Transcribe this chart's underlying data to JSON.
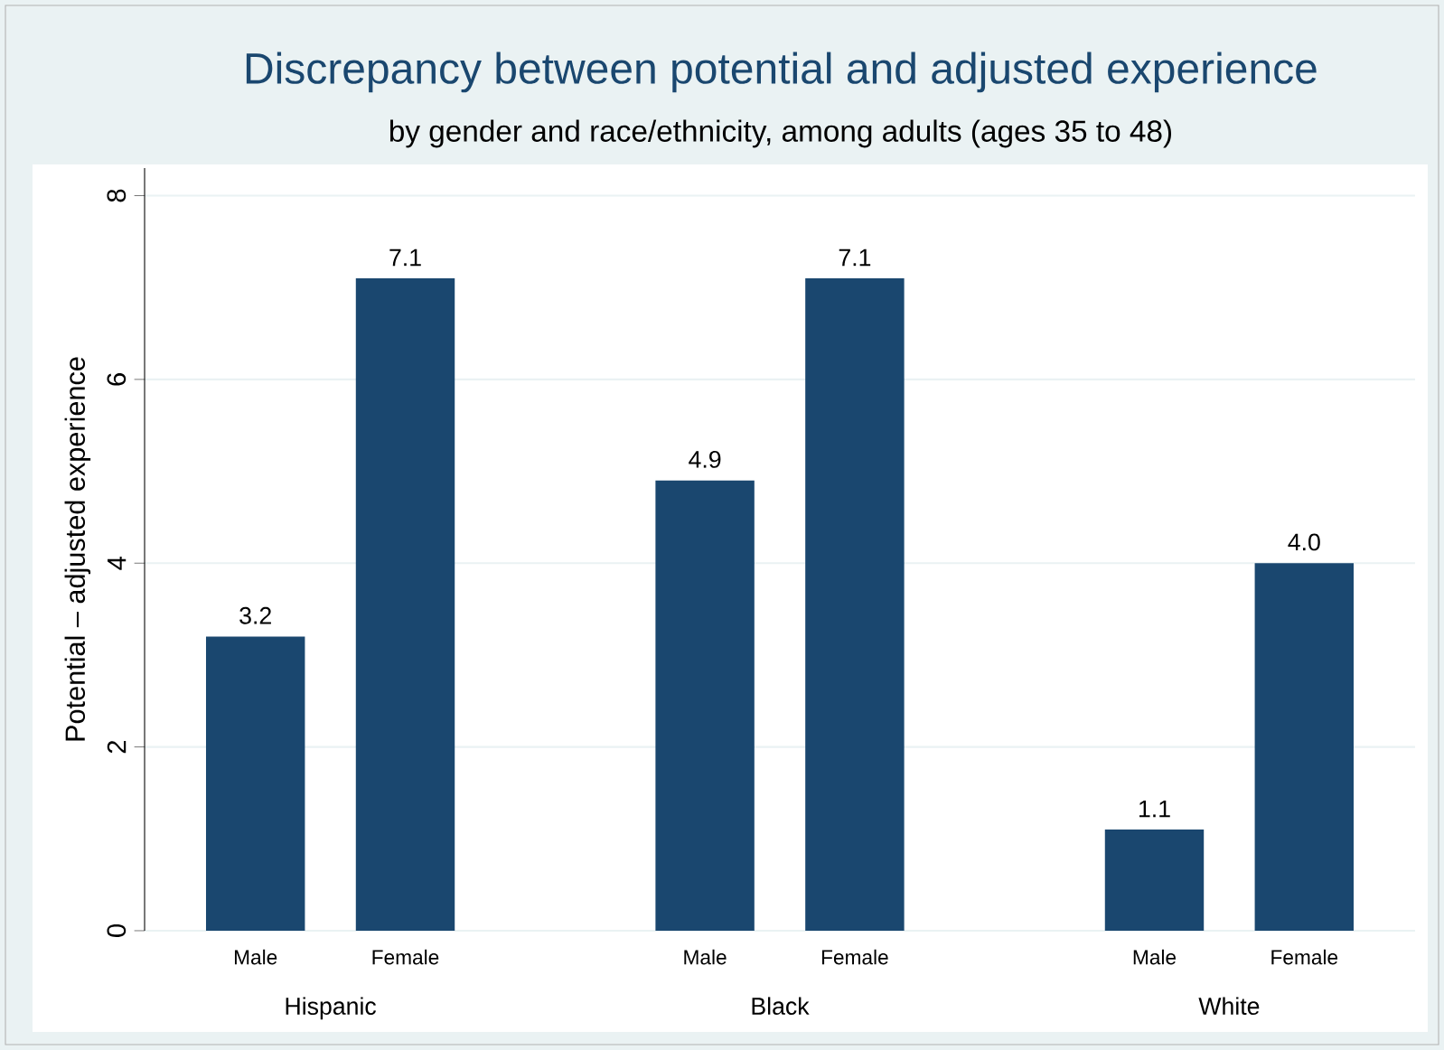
{
  "chart_data": {
    "type": "bar",
    "title": "Discrepancy between potential and adjusted experience",
    "subtitle": "by gender and race/ethnicity, among adults (ages 35 to 48)",
    "ylabel": "Potential – adjusted experience",
    "categories": [
      "Male",
      "Female",
      null,
      "Male",
      "Female",
      null,
      "Male",
      "Female"
    ],
    "values": [
      3.2,
      7.1,
      null,
      4.9,
      7.1,
      null,
      1.1,
      4.0
    ],
    "value_labels": [
      "3.2",
      "7.1",
      null,
      "4.9",
      "7.1",
      null,
      "1.1",
      "4.0"
    ],
    "color": "#1a476f",
    "ylim": [
      0,
      8.3
    ],
    "yticks": [
      0,
      2,
      4,
      6,
      8
    ],
    "grid": "y",
    "annotations": [
      "Hispanic",
      "Black",
      "White"
    ]
  }
}
